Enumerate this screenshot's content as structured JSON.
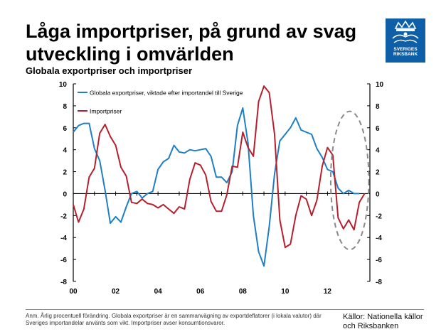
{
  "header": {
    "title": "Låga importpriser, på grund av svag utveckling i omvärlden",
    "subtitle": "Globala exportpriser och importpriser"
  },
  "logo": {
    "name": "riksbank-logo-icon",
    "text": "SVERIGES\nRIKSBANK",
    "color": "#0e5fa8"
  },
  "footer": {
    "note": "Anm. Årlig procentuell förändring. Globala exportpriser är en sammanvägning av exportdeflatorer (i lokala valutor) där Sveriges importandelar använts som vikt. Importpriser avser konsumtionsvaror.",
    "sources": "Källor: Nationella källor och Riksbanken"
  },
  "chart_data": {
    "type": "line",
    "xlim": [
      2000,
      2014
    ],
    "ylim": [
      -8,
      10
    ],
    "x_ticks": [
      2000,
      2002,
      2004,
      2006,
      2008,
      2010,
      2012
    ],
    "x_tick_labels": [
      "00",
      "02",
      "04",
      "06",
      "08",
      "10",
      "12"
    ],
    "y_ticks": [
      -8,
      -6,
      -4,
      -2,
      0,
      2,
      4,
      6,
      8,
      10
    ],
    "y_tick_labels": [
      "-8",
      "-6",
      "-4",
      "-2",
      "0",
      "2",
      "4",
      "6",
      "8",
      "10"
    ],
    "grid": false,
    "legend_position": "top-left",
    "series": [
      {
        "name": "Globala exportpriser, viktade efter importandel till Sverige",
        "color": "#1e7fc4",
        "x": [
          2000,
          2000.25,
          2000.5,
          2000.75,
          2001,
          2001.25,
          2001.5,
          2001.75,
          2002,
          2002.25,
          2002.5,
          2002.75,
          2003,
          2003.25,
          2003.5,
          2003.75,
          2004,
          2004.25,
          2004.5,
          2004.75,
          2005,
          2005.25,
          2005.5,
          2005.75,
          2006,
          2006.25,
          2006.5,
          2006.75,
          2007,
          2007.25,
          2007.5,
          2007.75,
          2008,
          2008.25,
          2008.5,
          2008.75,
          2009,
          2009.25,
          2009.5,
          2009.75,
          2010,
          2010.25,
          2010.5,
          2010.75,
          2011,
          2011.25,
          2011.5,
          2011.75,
          2012,
          2012.25,
          2012.5,
          2012.75,
          2013,
          2013.25,
          2013.5
        ],
        "y": [
          5.6,
          6.2,
          6.4,
          6.4,
          4.1,
          3.0,
          0.3,
          -2.7,
          -2.1,
          -2.6,
          -1.2,
          0.0,
          0.2,
          -0.4,
          0.0,
          0.2,
          2.2,
          2.9,
          3.2,
          4.4,
          3.8,
          3.7,
          4.0,
          3.9,
          4.0,
          4.1,
          3.4,
          1.5,
          1.5,
          1.0,
          2.0,
          6.2,
          7.8,
          4.6,
          -2.0,
          -5.3,
          -6.6,
          -3.0,
          1.8,
          4.8,
          5.4,
          6.0,
          6.9,
          5.8,
          5.6,
          5.4,
          4.1,
          3.3,
          2.2,
          2.0,
          0.5,
          0.0,
          0.3,
          0.0,
          0.0
        ]
      },
      {
        "name": "Importpriser",
        "color": "#b5202e",
        "x": [
          2000,
          2000.25,
          2000.5,
          2000.75,
          2001,
          2001.25,
          2001.5,
          2001.75,
          2002,
          2002.25,
          2002.5,
          2002.75,
          2003,
          2003.25,
          2003.5,
          2003.75,
          2004,
          2004.25,
          2004.5,
          2004.75,
          2005,
          2005.25,
          2005.5,
          2005.75,
          2006,
          2006.25,
          2006.5,
          2006.75,
          2007,
          2007.25,
          2007.5,
          2007.75,
          2008,
          2008.25,
          2008.5,
          2008.75,
          2009,
          2009.25,
          2009.5,
          2009.75,
          2010,
          2010.25,
          2010.5,
          2010.75,
          2011,
          2011.25,
          2011.5,
          2011.75,
          2012,
          2012.25,
          2012.5,
          2012.75,
          2013,
          2013.25,
          2013.5,
          2013.75
        ],
        "y": [
          -1.0,
          -2.6,
          -1.4,
          1.5,
          2.3,
          5.5,
          6.3,
          5.2,
          4.4,
          2.4,
          1.6,
          -0.8,
          -0.9,
          -0.5,
          -0.9,
          -1.0,
          -1.3,
          -1.0,
          -1.4,
          -1.8,
          -1.2,
          -1.4,
          1.3,
          2.8,
          2.6,
          1.7,
          -0.7,
          -1.6,
          -1.6,
          -0.1,
          2.5,
          2.4,
          5.6,
          4.2,
          3.4,
          8.4,
          9.8,
          9.2,
          5.4,
          -2.4,
          -4.9,
          -4.6,
          -2.0,
          -0.2,
          -0.5,
          -2.0,
          -0.6,
          2.5,
          4.2,
          3.5,
          -2.2,
          -3.2,
          -2.4,
          -3.3,
          -0.8,
          0.0
        ]
      }
    ],
    "annotation": {
      "type": "dashed-ellipse",
      "color": "#8a8a8a",
      "x_center": 2013.05,
      "y_center": 1.2,
      "x_radius": 0.9,
      "y_radius": 6.3
    }
  }
}
